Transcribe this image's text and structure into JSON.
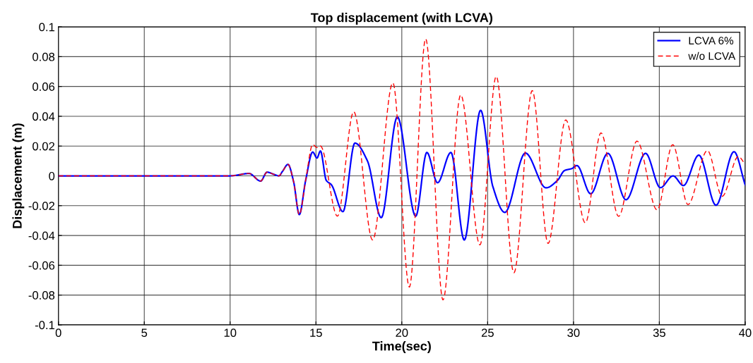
{
  "chart_data": {
    "type": "line",
    "title": "Top displacement (with LCVA)",
    "xlabel": "Time(sec)",
    "ylabel": "Displacement (m)",
    "xlim": [
      0,
      40
    ],
    "xticks": [
      0,
      5,
      10,
      15,
      20,
      25,
      30,
      35,
      40
    ],
    "ylim": [
      -0.1,
      0.1
    ],
    "yticks": [
      -0.1,
      -0.08,
      -0.06,
      -0.04,
      -0.02,
      0,
      0.02,
      0.04,
      0.06,
      0.08,
      0.1
    ],
    "grid": true,
    "legend": "top right",
    "series": [
      {
        "name": "LCVA 6%",
        "color": "#0000ff",
        "line_style": "solid",
        "x": [
          0,
          10,
          11.1,
          11.78,
          12.15,
          12.55,
          12.84,
          13.05,
          13.37,
          13.7,
          14.03,
          14.4,
          14.81,
          15.06,
          15.26,
          15.6,
          15.9,
          16.57,
          17.27,
          18.0,
          18.8,
          19.74,
          20.81,
          21.46,
          22.08,
          22.86,
          23.64,
          24.59,
          25.3,
          26.0,
          27.2,
          28.4,
          29.07,
          29.48,
          29.9,
          30.2,
          31.0,
          32.0,
          33.06,
          34.2,
          35.06,
          35.8,
          36.4,
          37.3,
          38.3,
          39.35,
          40
        ],
        "values": [
          0,
          0,
          0.0016,
          -0.0035,
          0.0025,
          0.001,
          0,
          0.003,
          0.0077,
          -0.004,
          -0.026,
          -0.003,
          0.016,
          0.012,
          0.0167,
          -0.003,
          -0.006,
          -0.024,
          0.022,
          0.01,
          -0.028,
          0.0395,
          -0.027,
          0.0157,
          -0.0046,
          0.0157,
          -0.043,
          0.044,
          -0.007,
          -0.0245,
          0.0153,
          -0.008,
          -0.003,
          0.0036,
          0.0049,
          0.0069,
          -0.012,
          0.0151,
          -0.016,
          0.0151,
          -0.0079,
          0,
          -0.0065,
          0.0139,
          -0.0197,
          0.0162,
          -0.006
        ]
      },
      {
        "name": "w/o LCVA",
        "color": "#ff0000",
        "line_style": "dashed",
        "x": [
          0,
          10,
          11.1,
          11.78,
          12.15,
          12.55,
          12.84,
          13.05,
          13.37,
          13.7,
          14.03,
          14.4,
          14.81,
          15.06,
          15.26,
          16.25,
          17.2,
          18.3,
          19.48,
          20.44,
          21.39,
          22.4,
          23.43,
          24.55,
          25.5,
          26.53,
          27.6,
          28.52,
          29.55,
          30.69,
          31.6,
          32.63,
          33.7,
          34.87,
          35.78,
          36.67,
          37.8,
          38.66,
          39.6,
          40
        ],
        "values": [
          0,
          0,
          0.0016,
          -0.0035,
          0.0025,
          0.001,
          0,
          0.003,
          0.0077,
          -0.004,
          -0.026,
          -0.003,
          0.021,
          0.019,
          0.02,
          -0.027,
          0.043,
          -0.043,
          0.0624,
          -0.0746,
          0.0919,
          -0.0832,
          0.0543,
          -0.0463,
          0.0667,
          -0.065,
          0.0572,
          -0.0453,
          0.0375,
          -0.0315,
          0.0288,
          -0.0271,
          0.0233,
          -0.0228,
          0.0209,
          -0.0192,
          0.017,
          -0.0137,
          0.013,
          0.0077
        ]
      }
    ]
  }
}
